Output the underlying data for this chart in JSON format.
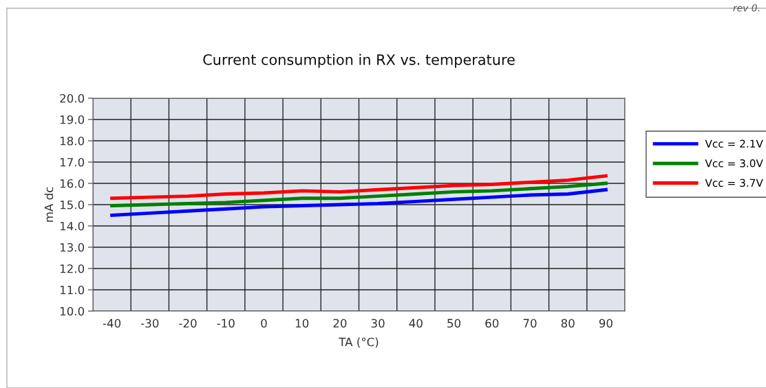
{
  "chart_data": {
    "type": "line",
    "title": "Current consumption in RX vs. temperature",
    "xlabel": "TA (°C)",
    "ylabel": "mA dc",
    "categories": [
      "-40",
      "-30",
      "-20",
      "-10",
      "0",
      "10",
      "20",
      "30",
      "40",
      "50",
      "60",
      "70",
      "80",
      "90"
    ],
    "series": [
      {
        "name": "Vcc = 2.1V",
        "color": "#0000ff",
        "values": [
          14.5,
          14.6,
          14.7,
          14.8,
          14.9,
          14.95,
          15.0,
          15.05,
          15.15,
          15.25,
          15.35,
          15.45,
          15.5,
          15.7
        ]
      },
      {
        "name": "Vcc = 3.0V",
        "color": "#008000",
        "values": [
          14.95,
          15.0,
          15.05,
          15.1,
          15.2,
          15.3,
          15.3,
          15.4,
          15.5,
          15.6,
          15.65,
          15.75,
          15.85,
          16.0
        ]
      },
      {
        "name": "Vcc = 3.7V",
        "color": "#ff0000",
        "values": [
          15.3,
          15.35,
          15.4,
          15.5,
          15.55,
          15.65,
          15.6,
          15.7,
          15.8,
          15.9,
          15.95,
          16.05,
          16.15,
          16.35
        ]
      }
    ],
    "ylim": [
      10,
      20
    ],
    "yticks": [
      {
        "value": 10,
        "label": "10.0"
      },
      {
        "value": 11,
        "label": "11.0"
      },
      {
        "value": 12,
        "label": "12.0"
      },
      {
        "value": 13,
        "label": "13.0"
      },
      {
        "value": 14,
        "label": "14.0"
      },
      {
        "value": 15,
        "label": "15.0"
      },
      {
        "value": 16,
        "label": "16.0"
      },
      {
        "value": 17,
        "label": "17.0"
      },
      {
        "value": 18,
        "label": "18.0"
      },
      {
        "value": 19,
        "label": "19.0"
      },
      {
        "value": 20,
        "label": "20.0"
      }
    ],
    "grid": true,
    "legend": "right",
    "marker": "none",
    "line_style": "solid",
    "annotations": [
      "rev 0."
    ]
  }
}
